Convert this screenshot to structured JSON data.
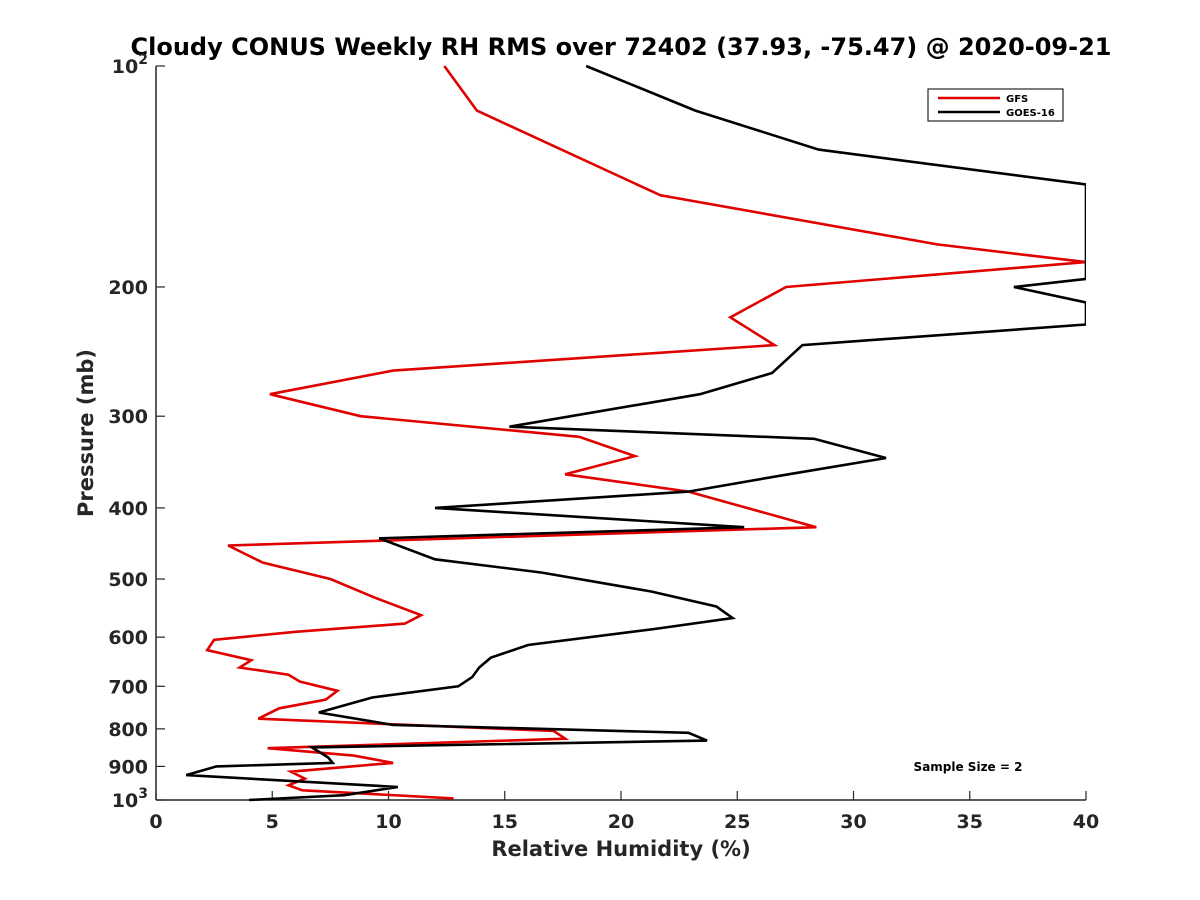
{
  "chart_data": {
    "type": "line",
    "title": "Cloudy CONUS Weekly RH RMS over 72402 (37.93, -75.47) @ 2020-09-21",
    "xlabel": "Relative Humidity (%)",
    "ylabel": "Pressure (mb)",
    "xlim": [
      0,
      40
    ],
    "ylim": [
      100,
      1000
    ],
    "y_scale": "log",
    "y_reversed": true,
    "x_ticks": [
      0,
      5,
      10,
      15,
      20,
      25,
      30,
      35,
      40
    ],
    "y_ticks": [
      {
        "value": 100,
        "label": "10",
        "sup": "2"
      },
      {
        "value": 200,
        "label": "200",
        "sup": ""
      },
      {
        "value": 300,
        "label": "300",
        "sup": ""
      },
      {
        "value": 400,
        "label": "400",
        "sup": ""
      },
      {
        "value": 500,
        "label": "500",
        "sup": ""
      },
      {
        "value": 600,
        "label": "600",
        "sup": ""
      },
      {
        "value": 700,
        "label": "700",
        "sup": ""
      },
      {
        "value": 800,
        "label": "800",
        "sup": ""
      },
      {
        "value": 900,
        "label": "900",
        "sup": ""
      },
      {
        "value": 1000,
        "label": "10",
        "sup": "3"
      }
    ],
    "legend_position": "top-right",
    "annotation": "Sample Size = 2",
    "series": [
      {
        "name": "GFS",
        "color": "#e00000",
        "points": [
          [
            12.4,
            100
          ],
          [
            13.8,
            115
          ],
          [
            21.7,
            150
          ],
          [
            33.6,
            175
          ],
          [
            40,
            185
          ],
          [
            27.1,
            200
          ],
          [
            24.7,
            220
          ],
          [
            26.6,
            240
          ],
          [
            10.2,
            260
          ],
          [
            4.9,
            280
          ],
          [
            8.8,
            300
          ],
          [
            18.2,
            320
          ],
          [
            20.6,
            340
          ],
          [
            17.6,
            360
          ],
          [
            22.9,
            380
          ],
          [
            28.4,
            425
          ],
          [
            3.1,
            450
          ],
          [
            4.6,
            475
          ],
          [
            7.5,
            500
          ],
          [
            9.4,
            530
          ],
          [
            11.4,
            560
          ],
          [
            10.7,
            575
          ],
          [
            6.0,
            590
          ],
          [
            2.5,
            605
          ],
          [
            2.2,
            625
          ],
          [
            4.1,
            645
          ],
          [
            3.6,
            660
          ],
          [
            5.7,
            675
          ],
          [
            6.2,
            690
          ],
          [
            7.8,
            710
          ],
          [
            7.3,
            730
          ],
          [
            5.3,
            750
          ],
          [
            4.4,
            775
          ],
          [
            17.1,
            805
          ],
          [
            17.6,
            825
          ],
          [
            4.8,
            850
          ],
          [
            8.5,
            870
          ],
          [
            10.2,
            890
          ],
          [
            5.8,
            915
          ],
          [
            6.4,
            935
          ],
          [
            5.7,
            955
          ],
          [
            6.3,
            970
          ],
          [
            12.8,
            995
          ]
        ]
      },
      {
        "name": "GOES-16",
        "color": "#000000",
        "points": [
          [
            18.5,
            100
          ],
          [
            23.2,
            115
          ],
          [
            28.5,
            130
          ],
          [
            40,
            145
          ],
          [
            40,
            195
          ],
          [
            36.9,
            200
          ],
          [
            40,
            210
          ],
          [
            40,
            225
          ],
          [
            27.8,
            240
          ],
          [
            26.5,
            262
          ],
          [
            23.4,
            280
          ],
          [
            15.2,
            310
          ],
          [
            28.3,
            322
          ],
          [
            31.4,
            342
          ],
          [
            27.2,
            360
          ],
          [
            22.9,
            380
          ],
          [
            12.0,
            400
          ],
          [
            25.3,
            425
          ],
          [
            9.6,
            440
          ],
          [
            12.0,
            470
          ],
          [
            16.6,
            490
          ],
          [
            21.3,
            520
          ],
          [
            24.1,
            545
          ],
          [
            24.8,
            565
          ],
          [
            21.4,
            585
          ],
          [
            16.0,
            615
          ],
          [
            14.4,
            640
          ],
          [
            13.9,
            660
          ],
          [
            13.6,
            680
          ],
          [
            13.0,
            700
          ],
          [
            9.3,
            725
          ],
          [
            7.0,
            760
          ],
          [
            10.2,
            790
          ],
          [
            22.9,
            810
          ],
          [
            23.7,
            830
          ],
          [
            6.7,
            848
          ],
          [
            7.4,
            875
          ],
          [
            7.6,
            890
          ],
          [
            2.6,
            900
          ],
          [
            1.3,
            925
          ],
          [
            10.4,
            960
          ],
          [
            8.1,
            985
          ],
          [
            4.0,
            1000
          ]
        ]
      }
    ]
  }
}
